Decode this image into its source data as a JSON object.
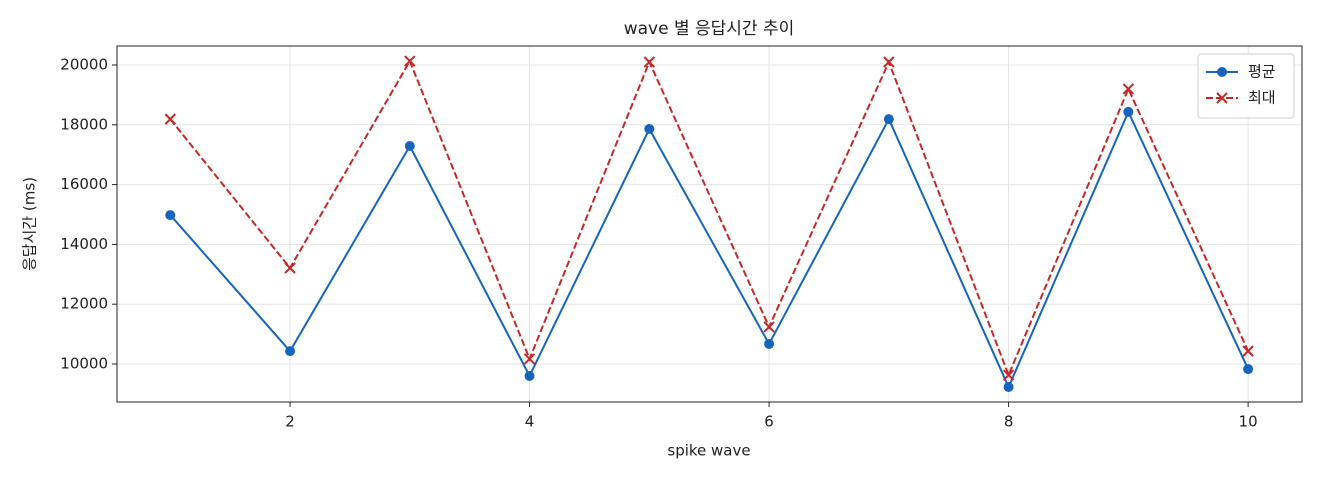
{
  "chart_data": {
    "type": "line",
    "title": "wave 별 응답시간 추이",
    "xlabel": "spike wave",
    "ylabel": "응답시간 (ms)",
    "x": [
      1,
      2,
      3,
      4,
      5,
      6,
      7,
      8,
      9,
      10
    ],
    "series": [
      {
        "name": "평균",
        "color": "#1565c0",
        "marker": "o",
        "linestyle": "solid",
        "values": [
          14980,
          10430,
          17290,
          9600,
          17860,
          10670,
          18190,
          9230,
          18430,
          9830
        ]
      },
      {
        "name": "최대",
        "color": "#c62828",
        "marker": "x",
        "linestyle": "dashed",
        "values": [
          18190,
          13210,
          20130,
          10170,
          20100,
          11240,
          20100,
          9630,
          19200,
          10430
        ]
      }
    ],
    "xlim": [
      0.555,
      10.45
    ],
    "ylim": [
      8729,
      20635
    ],
    "xticks": [
      2,
      4,
      6,
      8,
      10
    ],
    "yticks": [
      10000,
      12000,
      14000,
      16000,
      18000,
      20000
    ],
    "grid": true,
    "legend": "upper right"
  }
}
